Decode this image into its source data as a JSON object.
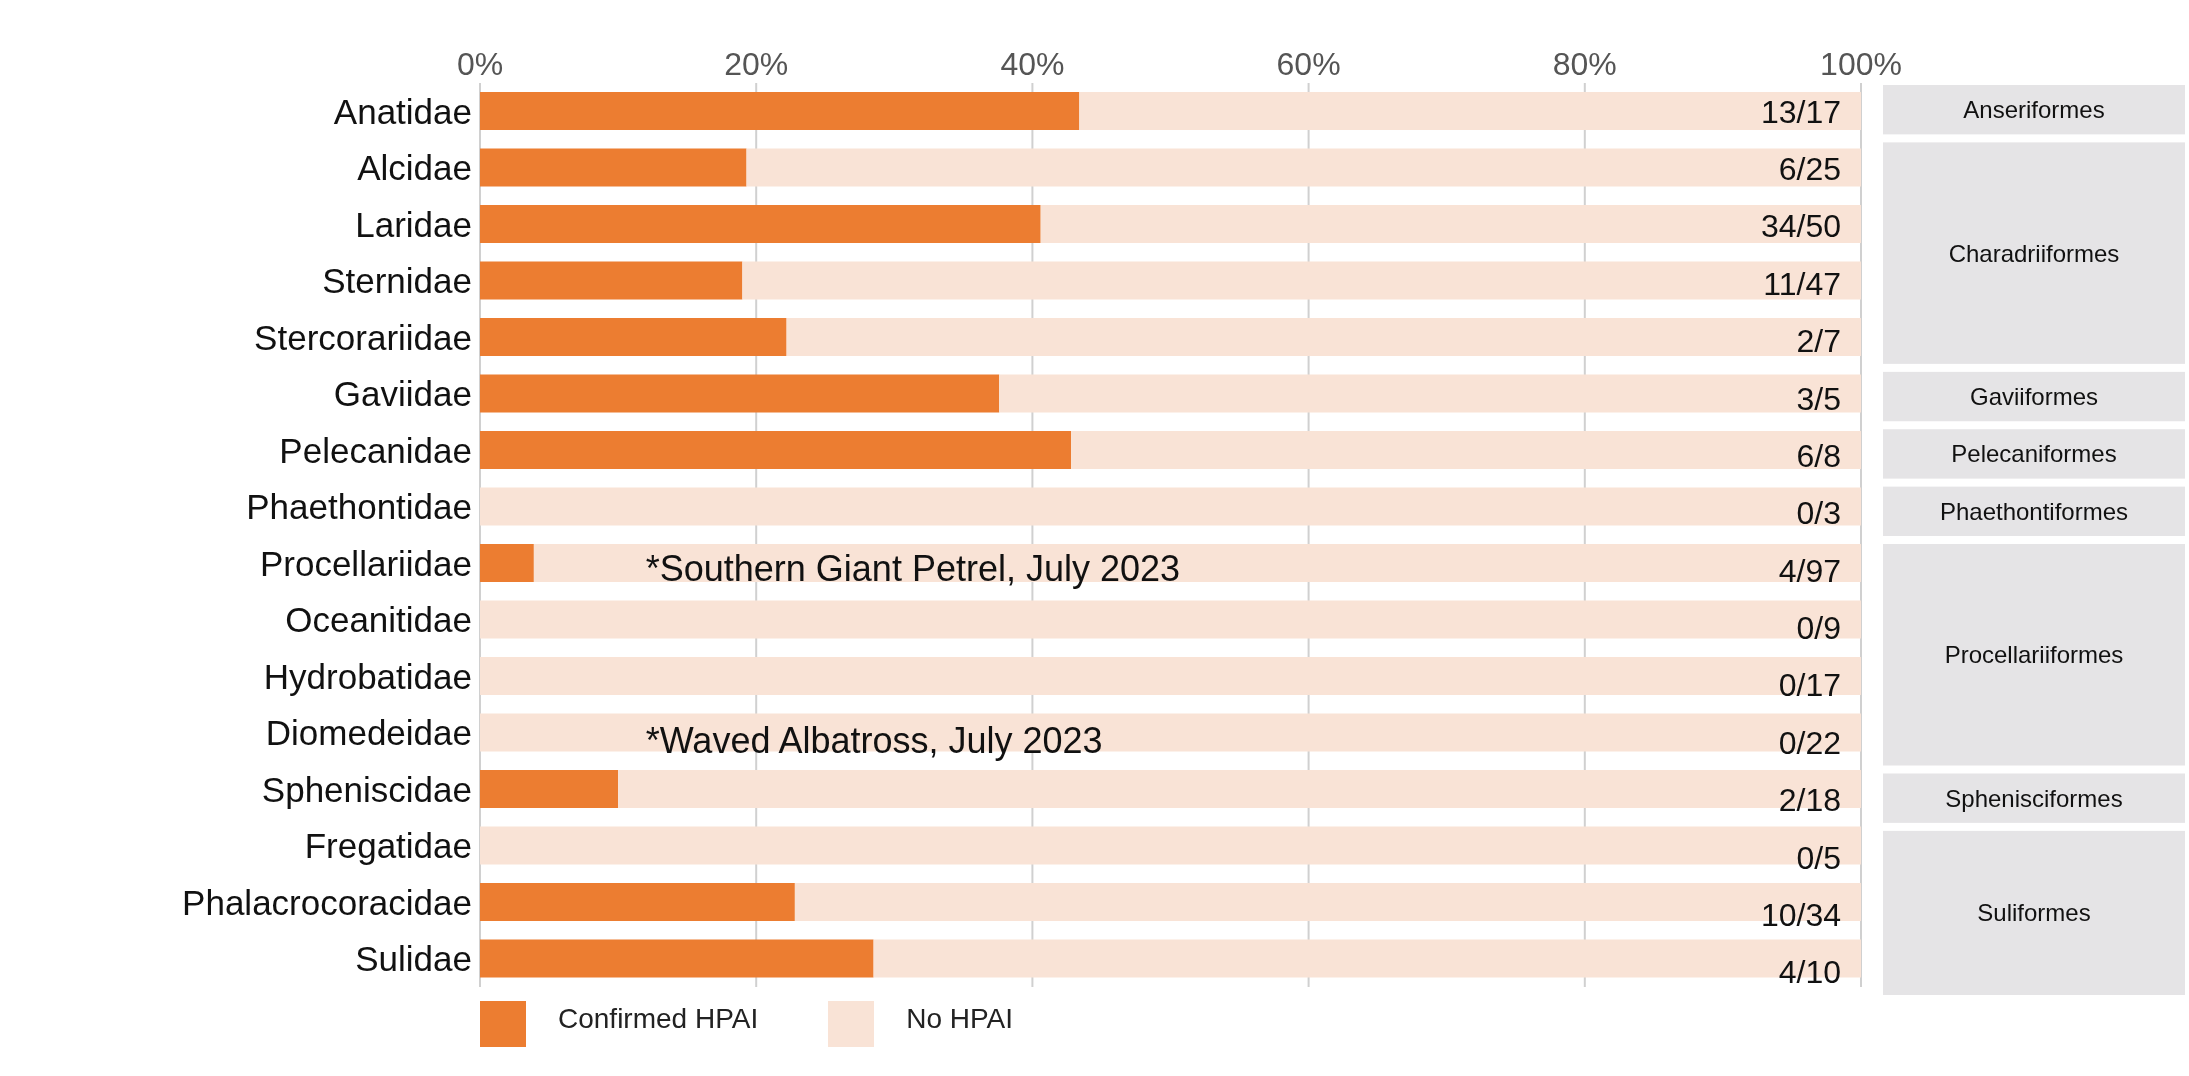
{
  "chart_data": {
    "type": "bar",
    "orientation": "horizontal",
    "stacked": true,
    "categories": [
      "Anatidae",
      "Alcidae",
      "Laridae",
      "Sternidae",
      "Stercorariidae",
      "Gaviidae",
      "Pelecanidae",
      "Phaethontidae",
      "Procellariidae",
      "Oceanitidae",
      "Hydrobatidae",
      "Diomedeidae",
      "Spheniscidae",
      "Fregatidae",
      "Phalacrocoracidae",
      "Sulidae"
    ],
    "series": [
      {
        "name": "Confirmed HPAI",
        "color": "#ec7d31",
        "values": [
          43.4,
          19.3,
          40.6,
          19.0,
          22.2,
          37.6,
          42.8,
          0,
          3.9,
          0,
          0,
          0,
          10.0,
          0,
          22.8,
          28.5
        ]
      },
      {
        "name": "No HPAI",
        "color": "#f9e3d6",
        "values": [
          56.6,
          80.7,
          59.4,
          81.0,
          77.8,
          62.4,
          57.2,
          100,
          96.1,
          100,
          100,
          100,
          90.0,
          100,
          77.2,
          71.5
        ]
      }
    ],
    "xlim": [
      0,
      100
    ],
    "xticks": [
      {
        "value": 0,
        "label": "0%"
      },
      {
        "value": 20,
        "label": "20%"
      },
      {
        "value": 40,
        "label": "40%"
      },
      {
        "value": 60,
        "label": "60%"
      },
      {
        "value": 80,
        "label": "80%"
      },
      {
        "value": 100,
        "label": "100%"
      }
    ],
    "grid": "x",
    "legend": "bottom left",
    "annotations": [
      "13/17",
      "6/25",
      "34/50",
      "11/47",
      "2/7",
      "3/5",
      "6/8",
      "0/3",
      "4/97",
      "0/9",
      "0/17",
      "0/22",
      "2/18",
      "0/5",
      "10/34",
      "4/10",
      "Anseriformes",
      "Charadriiformes",
      "Gaviiformes",
      "Pelecaniformes",
      "Phaethontiformes",
      "Procellariiformes",
      "Sphenisciformes",
      "Suliformes",
      {
        "text": "*Southern Giant Petrel, July 2023",
        "x": 12,
        "y": "Procellariidae"
      },
      {
        "text": "*Waved Albatross, July 2023",
        "x": 12,
        "y": "Diomedeidae"
      }
    ]
  }
}
